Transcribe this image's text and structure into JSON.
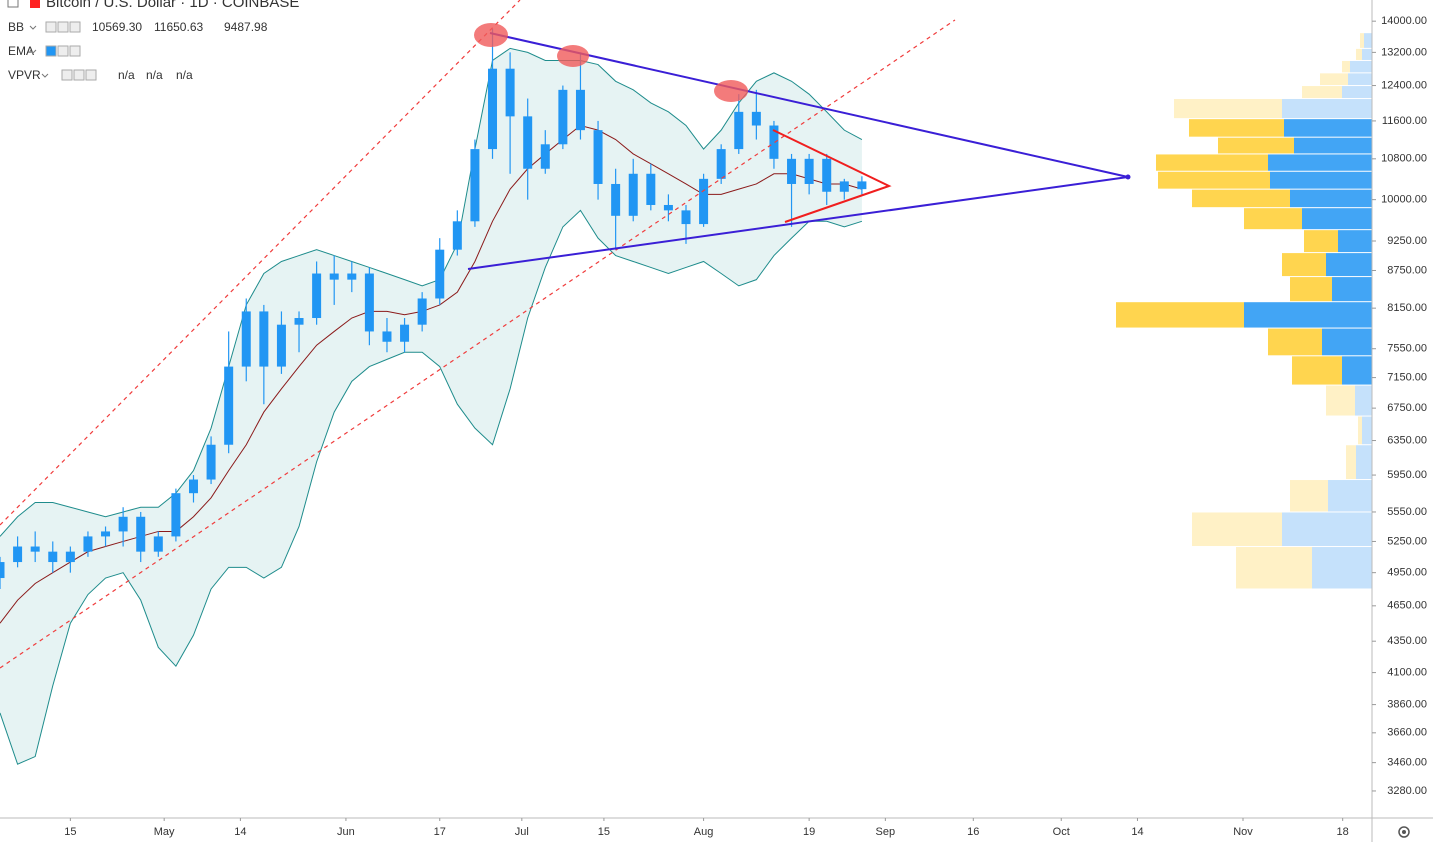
{
  "chart_data": {
    "type": "candlestick",
    "title": "Bitcoin / U.S. Dollar · 1D · COINBASE",
    "legend": [
      {
        "name": "BB",
        "values": [
          "10569.30",
          "11650.63",
          "9487.98"
        ],
        "colors": [
          "#8b1a1a",
          "#1e8c8c",
          "#1e8c8c"
        ]
      },
      {
        "name": "EMA"
      },
      {
        "name": "VPVR",
        "values": [
          "n/a",
          "n/a",
          "n/a"
        ],
        "colors": [
          "#26a69a",
          "#f5a623",
          "#333333"
        ]
      }
    ],
    "log_scale": true,
    "ylim": [
      3117,
      14570
    ],
    "yticks": [
      {
        "value": 14000,
        "label": "14000.00"
      },
      {
        "value": 13200,
        "label": "13200.00"
      },
      {
        "value": 12400,
        "label": "12400.00"
      },
      {
        "value": 11600,
        "label": "11600.00"
      },
      {
        "value": 10800,
        "label": "10800.00"
      },
      {
        "value": 10000,
        "label": "10000.00"
      },
      {
        "value": 9250,
        "label": "9250.00"
      },
      {
        "value": 8750,
        "label": "8750.00"
      },
      {
        "value": 8150,
        "label": "8150.00"
      },
      {
        "value": 7550,
        "label": "7550.00"
      },
      {
        "value": 7150,
        "label": "7150.00"
      },
      {
        "value": 6750,
        "label": "6750.00"
      },
      {
        "value": 6350,
        "label": "6350.00"
      },
      {
        "value": 5950,
        "label": "5950.00"
      },
      {
        "value": 5550,
        "label": "5550.00"
      },
      {
        "value": 5250,
        "label": "5250.00"
      },
      {
        "value": 4950,
        "label": "4950.00"
      },
      {
        "value": 4650,
        "label": "4650.00"
      },
      {
        "value": 4350,
        "label": "4350.00"
      },
      {
        "value": 4100,
        "label": "4100.00"
      },
      {
        "value": 3860,
        "label": "3860.00"
      },
      {
        "value": 3660,
        "label": "3660.00"
      },
      {
        "value": 3460,
        "label": "3460.00"
      },
      {
        "value": 3280,
        "label": "3280.00"
      }
    ],
    "xlim": [
      "Apr 3",
      "Nov 23"
    ],
    "xticks": [
      {
        "value": "Apr 15",
        "label": "15"
      },
      {
        "value": "May 1",
        "label": "May"
      },
      {
        "value": "May 14",
        "label": "14"
      },
      {
        "value": "Jun 1",
        "label": "Jun"
      },
      {
        "value": "Jun 17",
        "label": "17"
      },
      {
        "value": "Jul 1",
        "label": "Jul"
      },
      {
        "value": "Jul 15",
        "label": "15"
      },
      {
        "value": "Aug 1",
        "label": "Aug"
      },
      {
        "value": "Aug 19",
        "label": "19"
      },
      {
        "value": "Sep 1",
        "label": "Sep"
      },
      {
        "value": "Sep 16",
        "label": "16"
      },
      {
        "value": "Oct 1",
        "label": "Oct"
      },
      {
        "value": "Oct 14",
        "label": "14"
      },
      {
        "value": "Nov 1",
        "label": "Nov"
      },
      {
        "value": "Nov 18",
        "label": "18"
      }
    ],
    "x": [
      "Apr 3",
      "Apr 6",
      "Apr 9",
      "Apr 12",
      "Apr 15",
      "Apr 18",
      "Apr 21",
      "Apr 24",
      "Apr 27",
      "Apr 30",
      "May 3",
      "May 6",
      "May 9",
      "May 12",
      "May 15",
      "May 18",
      "May 21",
      "May 24",
      "May 27",
      "May 30",
      "Jun 2",
      "Jun 5",
      "Jun 8",
      "Jun 11",
      "Jun 14",
      "Jun 17",
      "Jun 20",
      "Jun 23",
      "Jun 26",
      "Jun 29",
      "Jul 2",
      "Jul 5",
      "Jul 8",
      "Jul 11",
      "Jul 14",
      "Jul 17",
      "Jul 20",
      "Jul 23",
      "Jul 26",
      "Jul 29",
      "Aug 1",
      "Aug 4",
      "Aug 7",
      "Aug 10",
      "Aug 13",
      "Aug 16",
      "Aug 19",
      "Aug 22",
      "Aug 25",
      "Aug 28"
    ],
    "candle_color": "#2196f3",
    "open": [
      4900,
      5050,
      5200,
      5150,
      5050,
      5150,
      5300,
      5350,
      5500,
      5150,
      5300,
      5750,
      5900,
      6300,
      7300,
      8100,
      7300,
      7900,
      8000,
      8700,
      8600,
      8700,
      7800,
      7650,
      7900,
      8300,
      9100,
      9600,
      11000,
      12800,
      11700,
      10600,
      11100,
      12300,
      11400,
      10300,
      9700,
      10500,
      9900,
      9800,
      9550,
      10400,
      11000,
      11800,
      11500,
      10800,
      10300,
      10800,
      10150,
      10350
    ],
    "high": [
      5100,
      5300,
      5350,
      5250,
      5200,
      5350,
      5400,
      5600,
      5550,
      5350,
      5800,
      5950,
      6400,
      7800,
      8300,
      8200,
      8100,
      8100,
      8900,
      9000,
      8900,
      8800,
      8000,
      8000,
      8400,
      9300,
      9800,
      11200,
      13800,
      13200,
      12100,
      11400,
      12400,
      13200,
      11600,
      10600,
      10800,
      10700,
      10100,
      9900,
      10500,
      11100,
      12200,
      12300,
      11600,
      10900,
      10900,
      10900,
      10400,
      10450
    ],
    "low": [
      4800,
      5000,
      5050,
      4950,
      4950,
      5100,
      5200,
      5200,
      5050,
      5100,
      5250,
      5650,
      5850,
      6200,
      7100,
      6800,
      7200,
      7500,
      7900,
      8200,
      8400,
      7600,
      7500,
      7500,
      7800,
      8200,
      9000,
      9500,
      10800,
      10500,
      10000,
      10500,
      11000,
      11200,
      10000,
      9100,
      9600,
      9800,
      9600,
      9200,
      9500,
      10300,
      10900,
      11200,
      10600,
      9500,
      10100,
      9900,
      10000,
      10100
    ],
    "close": [
      5050,
      5200,
      5150,
      5050,
      5150,
      5300,
      5350,
      5500,
      5150,
      5300,
      5750,
      5900,
      6300,
      7300,
      8100,
      7300,
      7900,
      8000,
      8700,
      8600,
      8700,
      7800,
      7650,
      7900,
      8300,
      9100,
      9600,
      11000,
      12800,
      11700,
      10600,
      11100,
      12300,
      11400,
      10300,
      9700,
      10500,
      9900,
      9800,
      9550,
      10400,
      11000,
      11800,
      11500,
      10800,
      10300,
      10800,
      10150,
      10350,
      10200
    ],
    "bands": {
      "fill": "#e6f3f3",
      "series": [
        {
          "color": "#1e8c8c",
          "values": [
            5300,
            5500,
            5650,
            5650,
            5600,
            5550,
            5500,
            5550,
            5600,
            5600,
            5750,
            6000,
            6500,
            7300,
            8200,
            8700,
            8900,
            9000,
            9100,
            9000,
            8900,
            8800,
            8700,
            8600,
            8500,
            8600,
            9200,
            11000,
            13000,
            13300,
            13200,
            13000,
            13000,
            13000,
            12900,
            12500,
            12300,
            12000,
            11800,
            11500,
            11000,
            11400,
            12000,
            12500,
            12700,
            12500,
            12200,
            11800,
            11400,
            11200
          ]
        },
        {
          "color": "#8b1a1a",
          "values": [
            4500,
            4700,
            4850,
            4950,
            5050,
            5150,
            5200,
            5250,
            5300,
            5350,
            5350,
            5500,
            5700,
            6000,
            6300,
            6700,
            7000,
            7300,
            7600,
            7800,
            8000,
            8100,
            8100,
            8050,
            8100,
            8200,
            8400,
            8900,
            9600,
            10200,
            10600,
            10900,
            11200,
            11500,
            11400,
            11200,
            10900,
            10700,
            10500,
            10300,
            10100,
            10100,
            10200,
            10300,
            10500,
            10500,
            10400,
            10300,
            10300,
            10200
          ]
        },
        {
          "color": "#1e8c8c",
          "values": [
            3800,
            3450,
            3500,
            4000,
            4500,
            4750,
            4900,
            4950,
            4700,
            4300,
            4150,
            4400,
            4800,
            5000,
            5000,
            4900,
            5000,
            5400,
            6100,
            6700,
            7100,
            7300,
            7400,
            7500,
            7500,
            7300,
            6800,
            6500,
            6300,
            7000,
            8000,
            8800,
            9500,
            9800,
            9300,
            9000,
            8900,
            8800,
            8700,
            8800,
            8900,
            8700,
            8500,
            8600,
            9000,
            9300,
            9600,
            9600,
            9500,
            9600
          ]
        }
      ]
    },
    "volume_profile": {
      "up_color": "#42a5f5",
      "down_color": "#ffd54f",
      "faded_up_color": "#c5e1fb",
      "faded_down_color": "#fff1c6",
      "rows": [
        {
          "low": 13300,
          "high": 13700,
          "up": 8,
          "down": 4,
          "faded": true
        },
        {
          "low": 13000,
          "high": 13300,
          "up": 10,
          "down": 6,
          "faded": true
        },
        {
          "low": 12700,
          "high": 13000,
          "up": 22,
          "down": 8,
          "faded": true
        },
        {
          "low": 12400,
          "high": 12700,
          "up": 24,
          "down": 28,
          "faded": true
        },
        {
          "low": 12100,
          "high": 12400,
          "up": 30,
          "down": 40,
          "faded": true
        },
        {
          "low": 11650,
          "high": 12100,
          "up": 90,
          "down": 108,
          "faded": true
        },
        {
          "low": 11250,
          "high": 11650,
          "up": 88,
          "down": 95,
          "faded": false
        },
        {
          "low": 10900,
          "high": 11250,
          "up": 78,
          "down": 76,
          "faded": false
        },
        {
          "low": 10550,
          "high": 10900,
          "up": 104,
          "down": 112,
          "faded": false
        },
        {
          "low": 10200,
          "high": 10550,
          "up": 102,
          "down": 112,
          "faded": false
        },
        {
          "low": 9850,
          "high": 10200,
          "up": 82,
          "down": 98,
          "faded": false
        },
        {
          "low": 9450,
          "high": 9850,
          "up": 70,
          "down": 58,
          "faded": false
        },
        {
          "low": 9050,
          "high": 9450,
          "up": 34,
          "down": 34,
          "faded": false
        },
        {
          "low": 8650,
          "high": 9050,
          "up": 46,
          "down": 44,
          "faded": false
        },
        {
          "low": 8250,
          "high": 8650,
          "up": 40,
          "down": 42,
          "faded": false
        },
        {
          "low": 7850,
          "high": 8250,
          "up": 128,
          "down": 128,
          "faded": false
        },
        {
          "low": 7450,
          "high": 7850,
          "up": 50,
          "down": 54,
          "faded": false
        },
        {
          "low": 7050,
          "high": 7450,
          "up": 30,
          "down": 50,
          "faded": false
        },
        {
          "low": 6650,
          "high": 7050,
          "up": 17,
          "down": 29,
          "faded": true
        },
        {
          "low": 6300,
          "high": 6650,
          "up": 10,
          "down": 4,
          "faded": true
        },
        {
          "low": 5900,
          "high": 6300,
          "up": 16,
          "down": 10,
          "faded": true
        },
        {
          "low": 5550,
          "high": 5900,
          "up": 44,
          "down": 38,
          "faded": true
        },
        {
          "low": 5200,
          "high": 5550,
          "up": 90,
          "down": 90,
          "faded": true
        },
        {
          "low": 4800,
          "high": 5200,
          "up": 60,
          "down": 76,
          "faded": true
        }
      ]
    }
  }
}
